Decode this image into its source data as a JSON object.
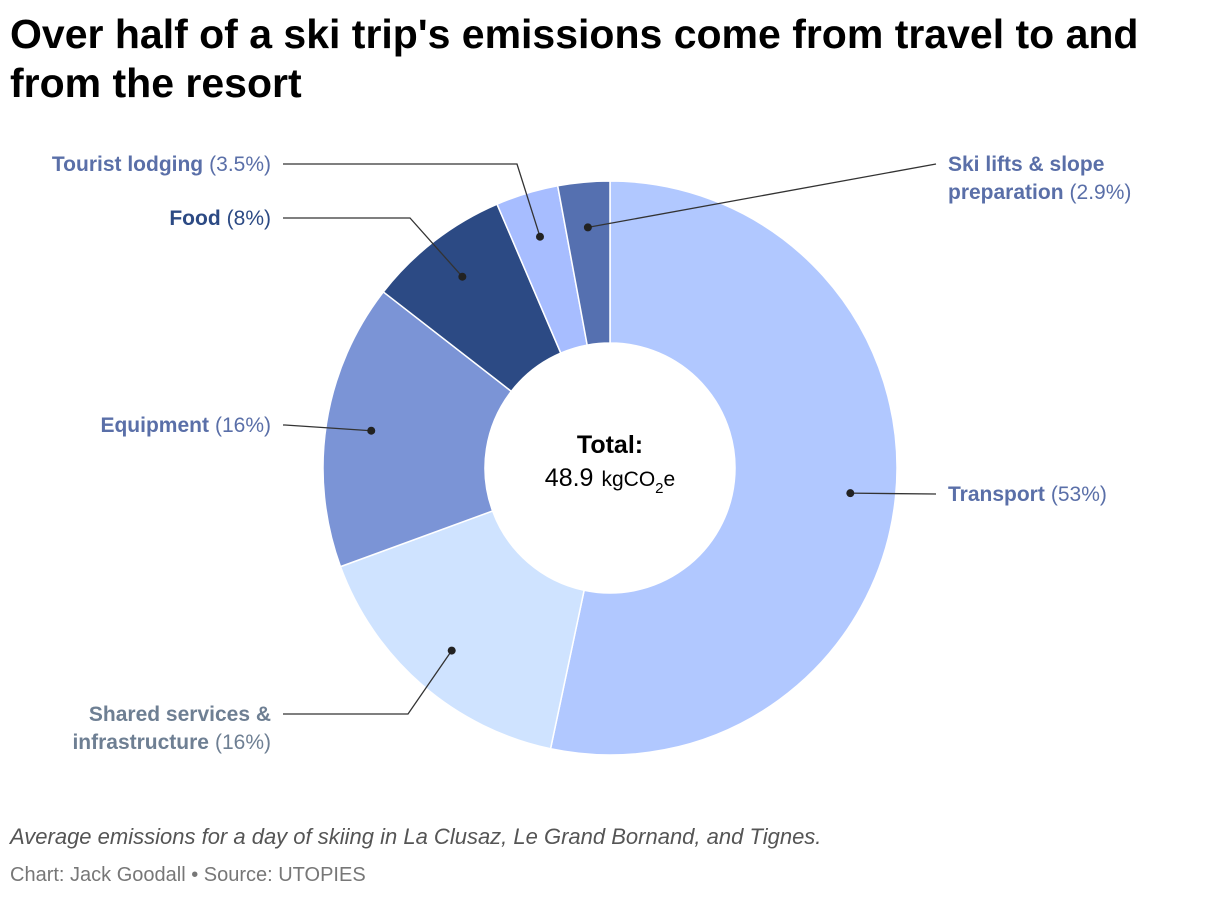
{
  "title": "Over half of a ski trip's emissions come from travel to and from the resort",
  "caption": "Average emissions for a day of skiing in La Clusaz, Le Grand Bornand, and Tignes.",
  "credit": "Chart: Jack Goodall • Source: UTOPIES",
  "chart_data": {
    "type": "pie",
    "variant": "donut",
    "center": {
      "heading": "Total:",
      "value": "48.9",
      "unit_prefix": "kgCO",
      "unit_sub": "2",
      "unit_suffix": "e"
    },
    "slices": [
      {
        "name": "Transport",
        "pct_label": "(53%)",
        "value": 53,
        "color": "#b1c8ff",
        "label_color": "#5a6fa8"
      },
      {
        "name": "Shared services & infrastructure",
        "name_lines": [
          "Shared services &",
          "infrastructure"
        ],
        "pct_label": "(16%)",
        "value": 16,
        "color": "#cfe3ff",
        "label_color": "#6e7f93"
      },
      {
        "name": "Equipment",
        "pct_label": "(16%)",
        "value": 16,
        "color": "#7b94d6",
        "label_color": "#5a6fa8"
      },
      {
        "name": "Food",
        "pct_label": "(8%)",
        "value": 8,
        "color": "#2c4a84",
        "label_color": "#2c4a84"
      },
      {
        "name": "Tourist lodging",
        "pct_label": "(3.5%)",
        "value": 3.5,
        "color": "#a7bdff",
        "label_color": "#5a6fa8"
      },
      {
        "name": "Ski lifts & slope preparation",
        "name_lines": [
          "Ski lifts & slope",
          "preparation"
        ],
        "pct_label": "(2.9%)",
        "value": 2.9,
        "color": "#5570b0",
        "label_color": "#5a6fa8"
      }
    ]
  }
}
